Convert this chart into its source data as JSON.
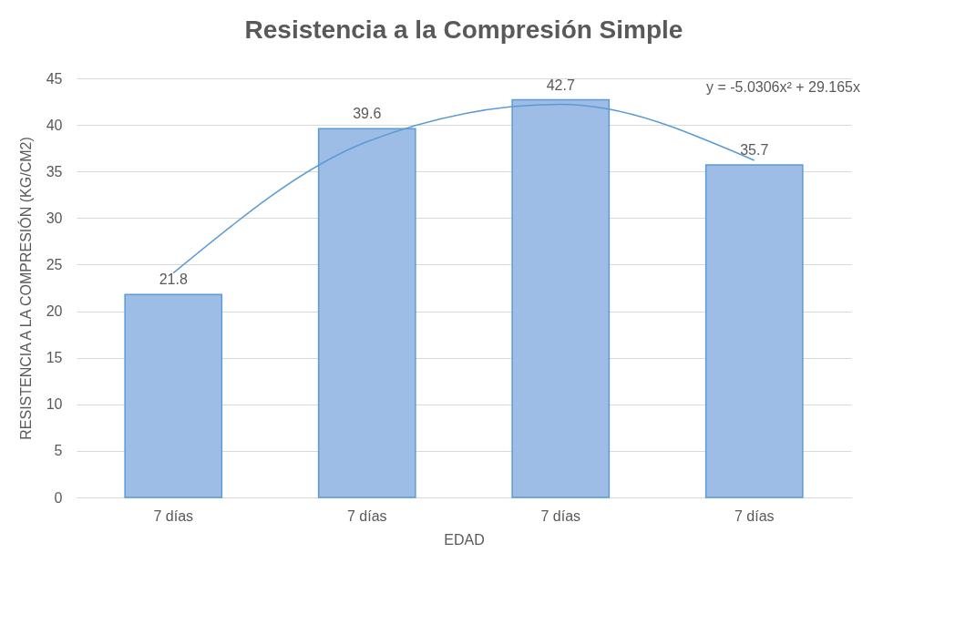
{
  "chart_data": {
    "type": "bar",
    "title": "Resistencia a la Compresión Simple",
    "xlabel": "EDAD",
    "ylabel": "RESISTENCIA A LA COMPRESIÓN (KG/CM2)",
    "categories": [
      "7 días",
      "7 días",
      "7 días",
      "7 días"
    ],
    "series": [
      {
        "color": "#9dbde6",
        "values": [
          21.8,
          39.6,
          42.7,
          35.7
        ],
        "value_labels": [
          "21.8",
          "39.6",
          "42.7",
          "35.7"
        ]
      },
      {
        "type": "line",
        "color": "#5b9bd5",
        "values": [
          24.1,
          38.2,
          42.2,
          36.2
        ]
      }
    ],
    "ylim": [
      0,
      45
    ],
    "yticks": [
      0,
      5,
      10,
      15,
      20,
      25,
      30,
      35,
      40,
      45
    ],
    "grid": "y",
    "annotations": [
      "y = -5.0306x² + 29.165x"
    ]
  }
}
